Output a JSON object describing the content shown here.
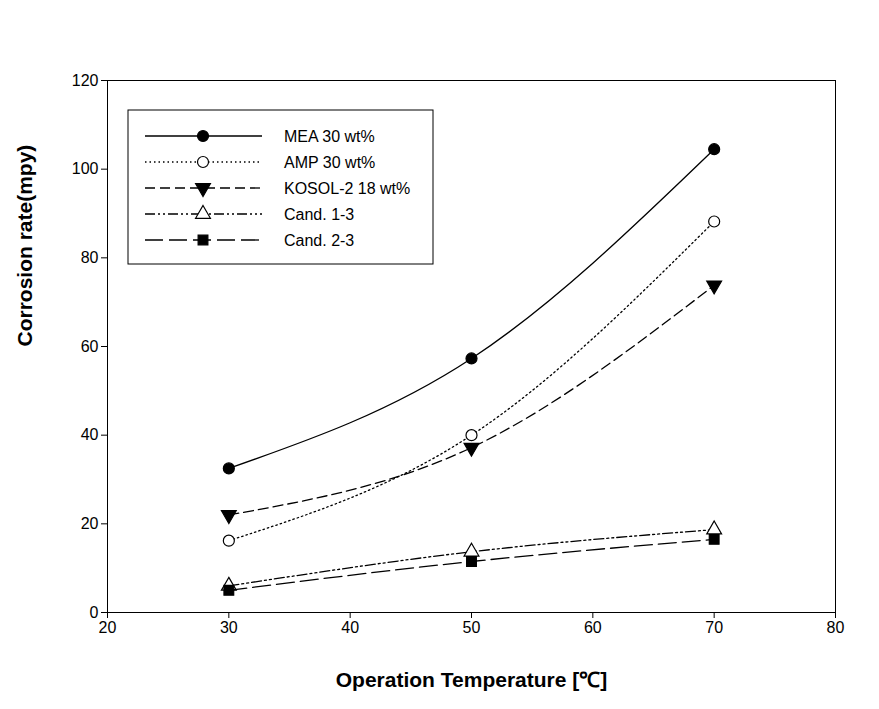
{
  "chart_data": {
    "type": "line",
    "x_label": "Operation Temperature [℃]",
    "y_label": "Corrosion rate(mpy)",
    "x": [
      30,
      50,
      70
    ],
    "xlim": [
      20,
      80
    ],
    "xticks": [
      20,
      30,
      40,
      50,
      60,
      70,
      80
    ],
    "ylim": [
      0,
      120
    ],
    "yticks": [
      0,
      20,
      40,
      60,
      80,
      100,
      120
    ],
    "grid": false,
    "legend": "top-left",
    "series": [
      {
        "name": "MEA 30 wt%",
        "color": "#000000",
        "marker": "filled-circle",
        "line_style": "solid",
        "values": [
          32.5,
          57.3,
          104.5
        ]
      },
      {
        "name": "AMP 30 wt%",
        "color": "#000000",
        "marker": "open-circle",
        "line_style": "dotted",
        "values": [
          16.2,
          40.0,
          88.2
        ]
      },
      {
        "name": "KOSOL-2 18 wt%",
        "color": "#000000",
        "marker": "filled-triangle-down",
        "line_style": "dashed",
        "values": [
          22.0,
          37.2,
          73.8
        ]
      },
      {
        "name": "Cand. 1-3",
        "color": "#000000",
        "marker": "open-triangle",
        "line_style": "dashdotdot",
        "values": [
          6.0,
          13.7,
          18.7
        ]
      },
      {
        "name": "Cand. 2-3",
        "color": "#000000",
        "marker": "filled-square",
        "line_style": "longdash",
        "values": [
          5.0,
          11.5,
          16.5
        ]
      }
    ]
  }
}
